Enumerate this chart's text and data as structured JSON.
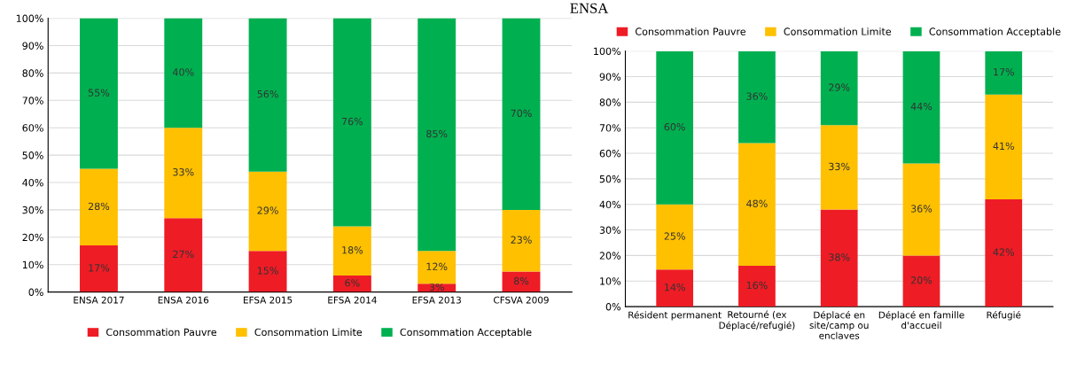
{
  "chart_data": [
    {
      "type": "bar",
      "stacked": true,
      "categories": [
        "ENSA 2017",
        "ENSA 2016",
        "EFSA 2015",
        "EFSA 2014",
        "EFSA 2013",
        "CFSVA 2009"
      ],
      "series": [
        {
          "name": "Consommation Pauvre",
          "color": "#ee1c25",
          "values": [
            17,
            27,
            15,
            6,
            3,
            7.5
          ],
          "value_labels": [
            "17%",
            "27%",
            "15%",
            "6%",
            "3%",
            "8%"
          ]
        },
        {
          "name": "Consommation Limite",
          "color": "#ffc000",
          "values": [
            28,
            33,
            29,
            18,
            12,
            22.5
          ],
          "value_labels": [
            "28%",
            "33%",
            "29%",
            "18%",
            "12%",
            "23%"
          ]
        },
        {
          "name": "Consommation Acceptable",
          "color": "#00b050",
          "values": [
            55,
            40,
            56,
            76,
            85,
            70
          ],
          "value_labels": [
            "55%",
            "40%",
            "56%",
            "76%",
            "85%",
            "70%"
          ]
        }
      ],
      "ylim": [
        0,
        100
      ],
      "yticks": [
        {
          "value": 0,
          "label": "0%"
        },
        {
          "value": 10,
          "label": "10%"
        },
        {
          "value": 20,
          "label": "20%"
        },
        {
          "value": 30,
          "label": "30%"
        },
        {
          "value": 40,
          "label": "40%"
        },
        {
          "value": 50,
          "label": "50%"
        },
        {
          "value": 60,
          "label": "60%"
        },
        {
          "value": 70,
          "label": "70%"
        },
        {
          "value": 80,
          "label": "80%"
        },
        {
          "value": 90,
          "label": "90%"
        },
        {
          "value": 100,
          "label": "100%"
        }
      ],
      "grid": "y",
      "legend": "bottom"
    },
    {
      "type": "bar",
      "stacked": true,
      "title": "ENSA",
      "categories": [
        "Résident permanent",
        "Retourné (ex\nDéplacé/refugié)",
        "Déplacé en\nsite/camp ou\nenclaves",
        "Déplacé en famille\nd'accueil",
        "Réfugié"
      ],
      "series": [
        {
          "name": "Consommation Pauvre",
          "color": "#ee1c25",
          "values": [
            14.5,
            16,
            38,
            20,
            42
          ],
          "value_labels": [
            "14%",
            "16%",
            "38%",
            "20%",
            "42%"
          ]
        },
        {
          "name": "Consommation Limite",
          "color": "#ffc000",
          "values": [
            25.5,
            48,
            33,
            36,
            41
          ],
          "value_labels": [
            "25%",
            "48%",
            "33%",
            "36%",
            "41%"
          ]
        },
        {
          "name": "Consommation Acceptable",
          "color": "#00b050",
          "values": [
            60,
            36,
            29,
            44,
            17
          ],
          "value_labels": [
            "60%",
            "36%",
            "29%",
            "44%",
            "17%"
          ]
        }
      ],
      "ylim": [
        0,
        100
      ],
      "yticks": [
        {
          "value": 0,
          "label": "0%"
        },
        {
          "value": 10,
          "label": "10%"
        },
        {
          "value": 20,
          "label": "20%"
        },
        {
          "value": 30,
          "label": "30%"
        },
        {
          "value": 40,
          "label": "40%"
        },
        {
          "value": 50,
          "label": "50%"
        },
        {
          "value": 60,
          "label": "60%"
        },
        {
          "value": 70,
          "label": "70%"
        },
        {
          "value": 80,
          "label": "80%"
        },
        {
          "value": 90,
          "label": "90%"
        },
        {
          "value": 100,
          "label": "100%"
        }
      ],
      "grid": "y",
      "legend": "top"
    }
  ]
}
